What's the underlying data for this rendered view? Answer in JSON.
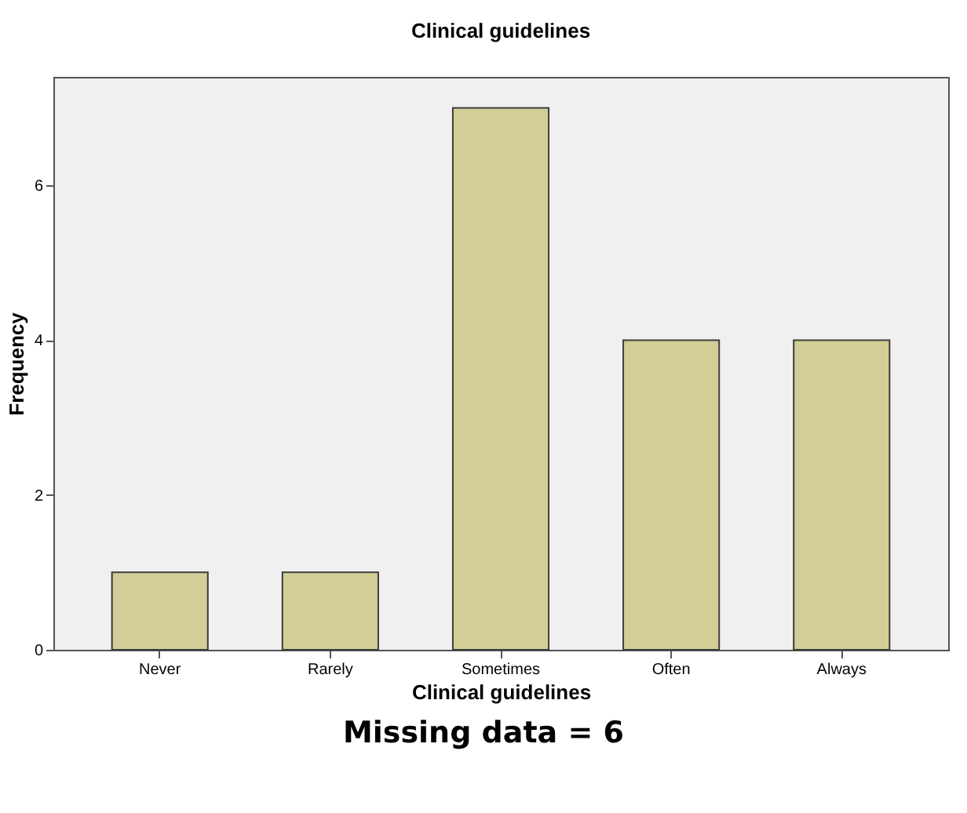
{
  "chart_data": {
    "type": "bar",
    "title": "Clinical guidelines",
    "xlabel": "Clinical guidelines",
    "ylabel": "Frequency",
    "categories": [
      "Never",
      "Rarely",
      "Sometimes",
      "Often",
      "Always"
    ],
    "values": [
      1,
      1,
      7,
      4,
      4
    ],
    "color": "#d3ce97",
    "ylim": [
      0,
      7.4
    ],
    "yticks": [
      0,
      2,
      4,
      6
    ],
    "grid": false,
    "annotations": [
      "Missing data = 6"
    ]
  }
}
